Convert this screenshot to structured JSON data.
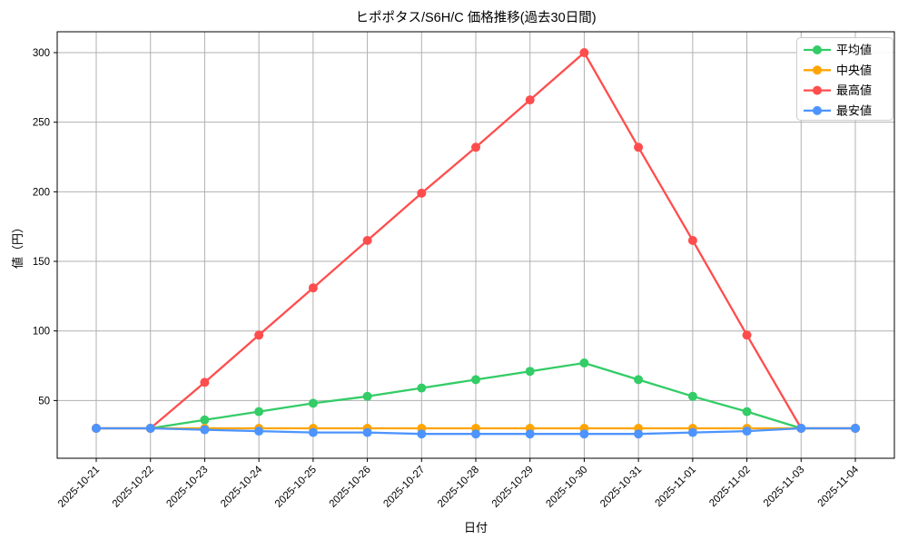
{
  "chart_data": {
    "type": "line",
    "title": "ヒポポタス/S6H/C 価格推移(過去30日間)",
    "xlabel": "日付",
    "ylabel": "値（円）",
    "x": [
      "2025-10-21",
      "2025-10-22",
      "2025-10-23",
      "2025-10-24",
      "2025-10-25",
      "2025-10-26",
      "2025-10-27",
      "2025-10-28",
      "2025-10-29",
      "2025-10-30",
      "2025-10-31",
      "2025-11-01",
      "2025-11-02",
      "2025-11-03",
      "2025-11-04"
    ],
    "yticks": [
      50,
      100,
      150,
      200,
      250,
      300
    ],
    "ylim": [
      8,
      315
    ],
    "grid": true,
    "grid_color": "#b0b0b0",
    "background": "#ffffff",
    "legend_position": "upper right",
    "series": [
      {
        "key": "average",
        "name": "平均値",
        "color": "#33cc66",
        "values": [
          30,
          30,
          36,
          42,
          48,
          53,
          59,
          65,
          71,
          77,
          65,
          53,
          42,
          30,
          30
        ]
      },
      {
        "key": "median",
        "name": "中央値",
        "color": "#ffa502",
        "values": [
          30,
          30,
          30,
          30,
          30,
          30,
          30,
          30,
          30,
          30,
          30,
          30,
          30,
          30,
          30
        ]
      },
      {
        "key": "max",
        "name": "最高値",
        "color": "#ff4d4d",
        "values": [
          30,
          30,
          63,
          97,
          131,
          165,
          199,
          232,
          266,
          300,
          232,
          165,
          97,
          30,
          30
        ]
      },
      {
        "key": "min",
        "name": "最安値",
        "color": "#4d94ff",
        "values": [
          30,
          30,
          29,
          28,
          27,
          27,
          26,
          26,
          26,
          26,
          26,
          27,
          28,
          30,
          30
        ]
      }
    ]
  }
}
